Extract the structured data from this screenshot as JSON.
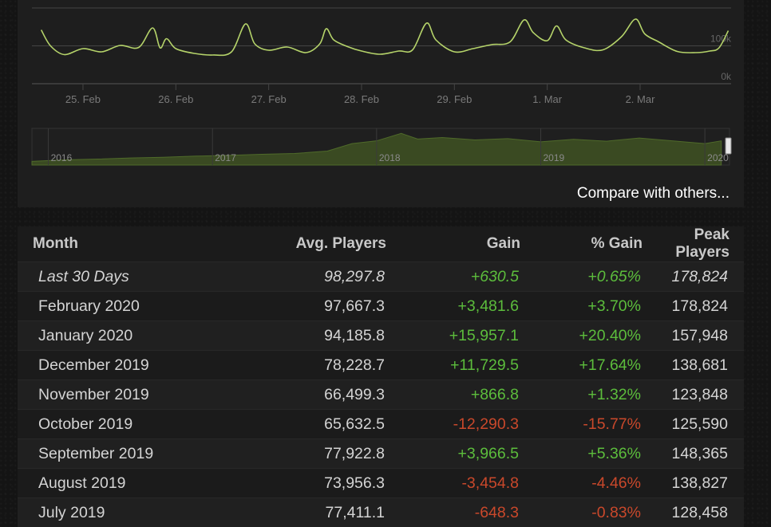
{
  "chart_data": [
    {
      "type": "line",
      "title": "",
      "x_tick_labels": [
        "25. Feb",
        "26. Feb",
        "27. Feb",
        "28. Feb",
        "29. Feb",
        "1. Mar",
        "2. Mar"
      ],
      "y_tick_labels": [
        "100k",
        "0k"
      ],
      "ylim": [
        0,
        190000
      ],
      "grid": true,
      "line_color": "#b5d36a",
      "series": [
        {
          "x": [
            24.55,
            24.65,
            24.8,
            25.0,
            25.2,
            25.4,
            25.6,
            25.75,
            25.83,
            25.9,
            26.0,
            26.2,
            26.4,
            26.6,
            26.75,
            26.85,
            27.0,
            27.2,
            27.4,
            27.55,
            27.62,
            27.7,
            27.85,
            28.0,
            28.2,
            28.4,
            28.55,
            28.7,
            28.8,
            29.0,
            29.2,
            29.4,
            29.6,
            29.75,
            29.85,
            30.0,
            30.1,
            30.2,
            30.4,
            30.6,
            30.8,
            30.95,
            31.05,
            31.2,
            31.4,
            31.6,
            31.75,
            31.85,
            31.95
          ],
          "y": [
            135000,
            95000,
            73000,
            88000,
            80000,
            96000,
            91000,
            140000,
            90000,
            113000,
            88000,
            76000,
            72000,
            80000,
            150000,
            100000,
            84000,
            92000,
            78000,
            100000,
            138000,
            110000,
            93000,
            82000,
            74000,
            82000,
            85000,
            152000,
            110000,
            80000,
            88000,
            98000,
            105000,
            160000,
            128000,
            108000,
            145000,
            110000,
            90000,
            85000,
            118000,
            162000,
            125000,
            105000,
            81000,
            78000,
            82000,
            90000,
            133000
          ]
        }
      ]
    },
    {
      "type": "area",
      "title": "",
      "x_tick_labels": [
        "2016",
        "2017",
        "2018",
        "2019",
        "2020"
      ],
      "ylim": [
        0,
        180000
      ],
      "fill_color": "#3a4a22",
      "line_color": "#4f6a2a",
      "series": [
        {
          "x": [
            2015.9,
            2016.1,
            2016.3,
            2016.5,
            2016.7,
            2016.9,
            2017.1,
            2017.3,
            2017.5,
            2017.7,
            2017.85,
            2018.0,
            2018.15,
            2018.25,
            2018.4,
            2018.6,
            2018.8,
            2019.0,
            2019.2,
            2019.4,
            2019.6,
            2019.8,
            2020.0,
            2020.1
          ],
          "y": [
            20000,
            28000,
            32000,
            38000,
            42000,
            48000,
            52000,
            58000,
            62000,
            75000,
            115000,
            130000,
            170000,
            140000,
            148000,
            135000,
            142000,
            125000,
            138000,
            128000,
            145000,
            130000,
            115000,
            130000
          ]
        }
      ]
    },
    {
      "type": "table",
      "columns": [
        "Month",
        "Avg. Players",
        "Gain",
        "% Gain",
        "Peak Players"
      ],
      "rows": [
        [
          "Last 30 Days",
          "98,297.8",
          "+630.5",
          "+0.65%",
          "178,824"
        ],
        [
          "February 2020",
          "97,667.3",
          "+3,481.6",
          "+3.70%",
          "178,824"
        ],
        [
          "January 2020",
          "94,185.8",
          "+15,957.1",
          "+20.40%",
          "157,948"
        ],
        [
          "December 2019",
          "78,228.7",
          "+11,729.5",
          "+17.64%",
          "138,681"
        ],
        [
          "November 2019",
          "66,499.3",
          "+866.8",
          "+1.32%",
          "123,848"
        ],
        [
          "October 2019",
          "65,632.5",
          "-12,290.3",
          "-15.77%",
          "125,590"
        ],
        [
          "September 2019",
          "77,922.8",
          "+3,966.5",
          "+5.36%",
          "148,365"
        ],
        [
          "August 2019",
          "73,956.3",
          "-3,454.8",
          "-4.46%",
          "138,827"
        ],
        [
          "July 2019",
          "77,411.1",
          "-648.3",
          "-0.83%",
          "128,458"
        ]
      ]
    }
  ],
  "compare_link": "Compare with others...",
  "table": {
    "headers": {
      "month": "Month",
      "avg": "Avg. Players",
      "gain": "Gain",
      "pct": "% Gain",
      "peak": "Peak Players"
    },
    "rows": [
      {
        "month": "Last 30 Days",
        "avg": "98,297.8",
        "gain": "+630.5",
        "pct": "+0.65%",
        "peak": "178,824"
      },
      {
        "month": "February 2020",
        "avg": "97,667.3",
        "gain": "+3,481.6",
        "pct": "+3.70%",
        "peak": "178,824"
      },
      {
        "month": "January 2020",
        "avg": "94,185.8",
        "gain": "+15,957.1",
        "pct": "+20.40%",
        "peak": "157,948"
      },
      {
        "month": "December 2019",
        "avg": "78,228.7",
        "gain": "+11,729.5",
        "pct": "+17.64%",
        "peak": "138,681"
      },
      {
        "month": "November 2019",
        "avg": "66,499.3",
        "gain": "+866.8",
        "pct": "+1.32%",
        "peak": "123,848"
      },
      {
        "month": "October 2019",
        "avg": "65,632.5",
        "gain": "-12,290.3",
        "pct": "-15.77%",
        "peak": "125,590"
      },
      {
        "month": "September 2019",
        "avg": "77,922.8",
        "gain": "+3,966.5",
        "pct": "+5.36%",
        "peak": "148,365"
      },
      {
        "month": "August 2019",
        "avg": "73,956.3",
        "gain": "-3,454.8",
        "pct": "-4.46%",
        "peak": "138,827"
      },
      {
        "month": "July 2019",
        "avg": "77,411.1",
        "gain": "-648.3",
        "pct": "-0.83%",
        "peak": "128,458"
      }
    ]
  },
  "colors": {
    "positive": "#5cbd3c",
    "negative": "#c9482b",
    "line": "#b5d36a"
  }
}
